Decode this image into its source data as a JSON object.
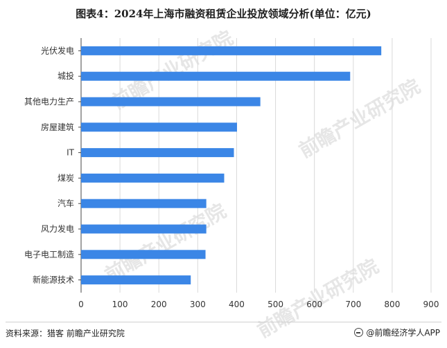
{
  "title": "图表4：2024年上海市融资租赁企业投放领域分析(单位：亿元)",
  "source": "资料来源：猎客 前瞻产业研究院",
  "brand": "@前瞻经济学人APP",
  "watermark": "前瞻产业研究院",
  "colors": {
    "bar": "#3b86e6",
    "grid": "#d9d9d9",
    "axis": "#333333"
  },
  "chart_data": {
    "type": "bar",
    "orientation": "horizontal",
    "title": "图表4：2024年上海市融资租赁企业投放领域分析(单位：亿元)",
    "categories": [
      "光伏发电",
      "城投",
      "其他电力生产",
      "房屋建筑",
      "IT",
      "煤炭",
      "汽车",
      "风力发电",
      "电子电工制造",
      "新能源技术"
    ],
    "values": [
      772,
      692,
      461,
      401,
      393,
      368,
      322,
      322,
      320,
      282
    ],
    "xlim": [
      0,
      900
    ],
    "xticks": [
      0,
      100,
      200,
      300,
      400,
      500,
      600,
      700,
      800,
      900
    ],
    "xlabel": "",
    "ylabel": "",
    "grid": true
  }
}
